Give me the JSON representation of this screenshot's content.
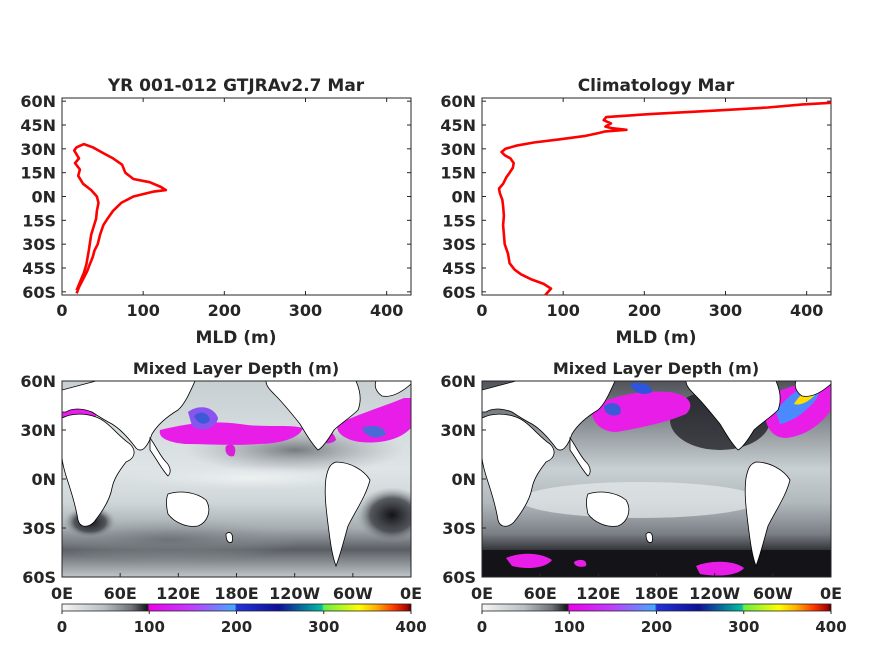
{
  "chart_data": [
    {
      "type": "line",
      "title": "YR 001-012 GTJRAv2.7 Mar",
      "xlabel": "MLD (m)",
      "ylabel": "",
      "xlim": [
        0,
        430
      ],
      "ylim": [
        -62,
        62
      ],
      "xticks": [
        0,
        100,
        200,
        300,
        400
      ],
      "yticks": [
        60,
        45,
        30,
        15,
        0,
        -15,
        -30,
        -45,
        -60
      ],
      "ytick_labels": [
        "60N",
        "45N",
        "30N",
        "15N",
        "0N",
        "15S",
        "30S",
        "45S",
        "60S"
      ],
      "color": "#ff0000",
      "series": [
        {
          "x": [
            18,
            21,
            26,
            31,
            34,
            38,
            40,
            44,
            47,
            51,
            56,
            63,
            73,
            88,
            112,
            128,
            122,
            108,
            88,
            78,
            74,
            63,
            52,
            38,
            27,
            18,
            15,
            21,
            16,
            22,
            20,
            26,
            36,
            43,
            45,
            43,
            42,
            36,
            33,
            30,
            27,
            22,
            18
          ],
          "y": [
            -61,
            -57,
            -52,
            -47,
            -43,
            -38,
            -34,
            -30,
            -24,
            -18,
            -14,
            -9,
            -4,
            0,
            3,
            4,
            6,
            9,
            11,
            15,
            20,
            24,
            27,
            31,
            33,
            31,
            29,
            24,
            21,
            17,
            13,
            8,
            4,
            0,
            -4,
            -9,
            -14,
            -24,
            -34,
            -43,
            -48,
            -54,
            -59
          ]
        }
      ]
    },
    {
      "type": "line",
      "title": "Climatology Mar",
      "xlabel": "MLD (m)",
      "ylabel": "",
      "xlim": [
        0,
        430
      ],
      "ylim": [
        -62,
        62
      ],
      "xticks": [
        0,
        100,
        200,
        300,
        400
      ],
      "yticks": [
        60,
        45,
        30,
        15,
        0,
        -15,
        -30,
        -45,
        -60
      ],
      "ytick_labels": [
        "60N",
        "45N",
        "30N",
        "15N",
        "0N",
        "15S",
        "30S",
        "45S",
        "60S"
      ],
      "color": "#ff0000",
      "series": [
        {
          "x": [
            78,
            85,
            76,
            60,
            48,
            40,
            34,
            32,
            28,
            27,
            26,
            27,
            26,
            25,
            22,
            21,
            26,
            30,
            34,
            38,
            39,
            35,
            28,
            24,
            29,
            42,
            64,
            96,
            126,
            144,
            152,
            178,
            160,
            152,
            159,
            150,
            153,
            210,
            285,
            352,
            395,
            430
          ],
          "y": [
            -62,
            -58,
            -55,
            -52,
            -49,
            -46,
            -42,
            -36,
            -30,
            -24,
            -18,
            -12,
            -6,
            -2,
            2,
            5,
            8,
            12,
            15,
            18,
            21,
            24,
            26,
            28,
            30,
            32,
            34,
            36,
            38,
            40,
            41,
            42,
            43,
            44,
            46,
            48,
            50,
            52,
            54,
            56,
            58,
            59
          ]
        }
      ]
    },
    {
      "type": "heatmap",
      "title": "Mixed Layer Depth (m)",
      "xtick_labels": [
        "0E",
        "60E",
        "120E",
        "180E",
        "120W",
        "60W",
        "0E"
      ],
      "ytick_labels": [
        "60N",
        "30N",
        "0N",
        "30S",
        "60S"
      ],
      "colorbar_ticks": [
        0,
        100,
        200,
        300,
        400
      ],
      "clim": [
        0,
        400
      ]
    },
    {
      "type": "heatmap",
      "title": "Mixed Layer Depth (m)",
      "xtick_labels": [
        "0E",
        "60E",
        "120E",
        "180E",
        "120W",
        "60W",
        "0E"
      ],
      "ytick_labels": [
        "60N",
        "30N",
        "0N",
        "30S",
        "60S"
      ],
      "colorbar_ticks": [
        0,
        100,
        200,
        300,
        400
      ],
      "clim": [
        0,
        400
      ]
    }
  ],
  "colors": {
    "line": "#ff0000",
    "ocean_light": "#d6dde0",
    "ocean_mid": "#8e949a",
    "ocean_dark": "#1c1c22",
    "land": "#ffffff",
    "magenta": "#ee22ee",
    "blue": "#3355dd",
    "colormap": [
      "#f4f4f4",
      "#b4bcc0",
      "#6e7278",
      "#18181c",
      "#ee00ee",
      "#c040ff",
      "#33aaff",
      "#2233dd",
      "#1010a0",
      "#00bbaa",
      "#55ee55",
      "#ffff00",
      "#ffa000",
      "#ff3000",
      "#cc0000",
      "#550000"
    ]
  }
}
